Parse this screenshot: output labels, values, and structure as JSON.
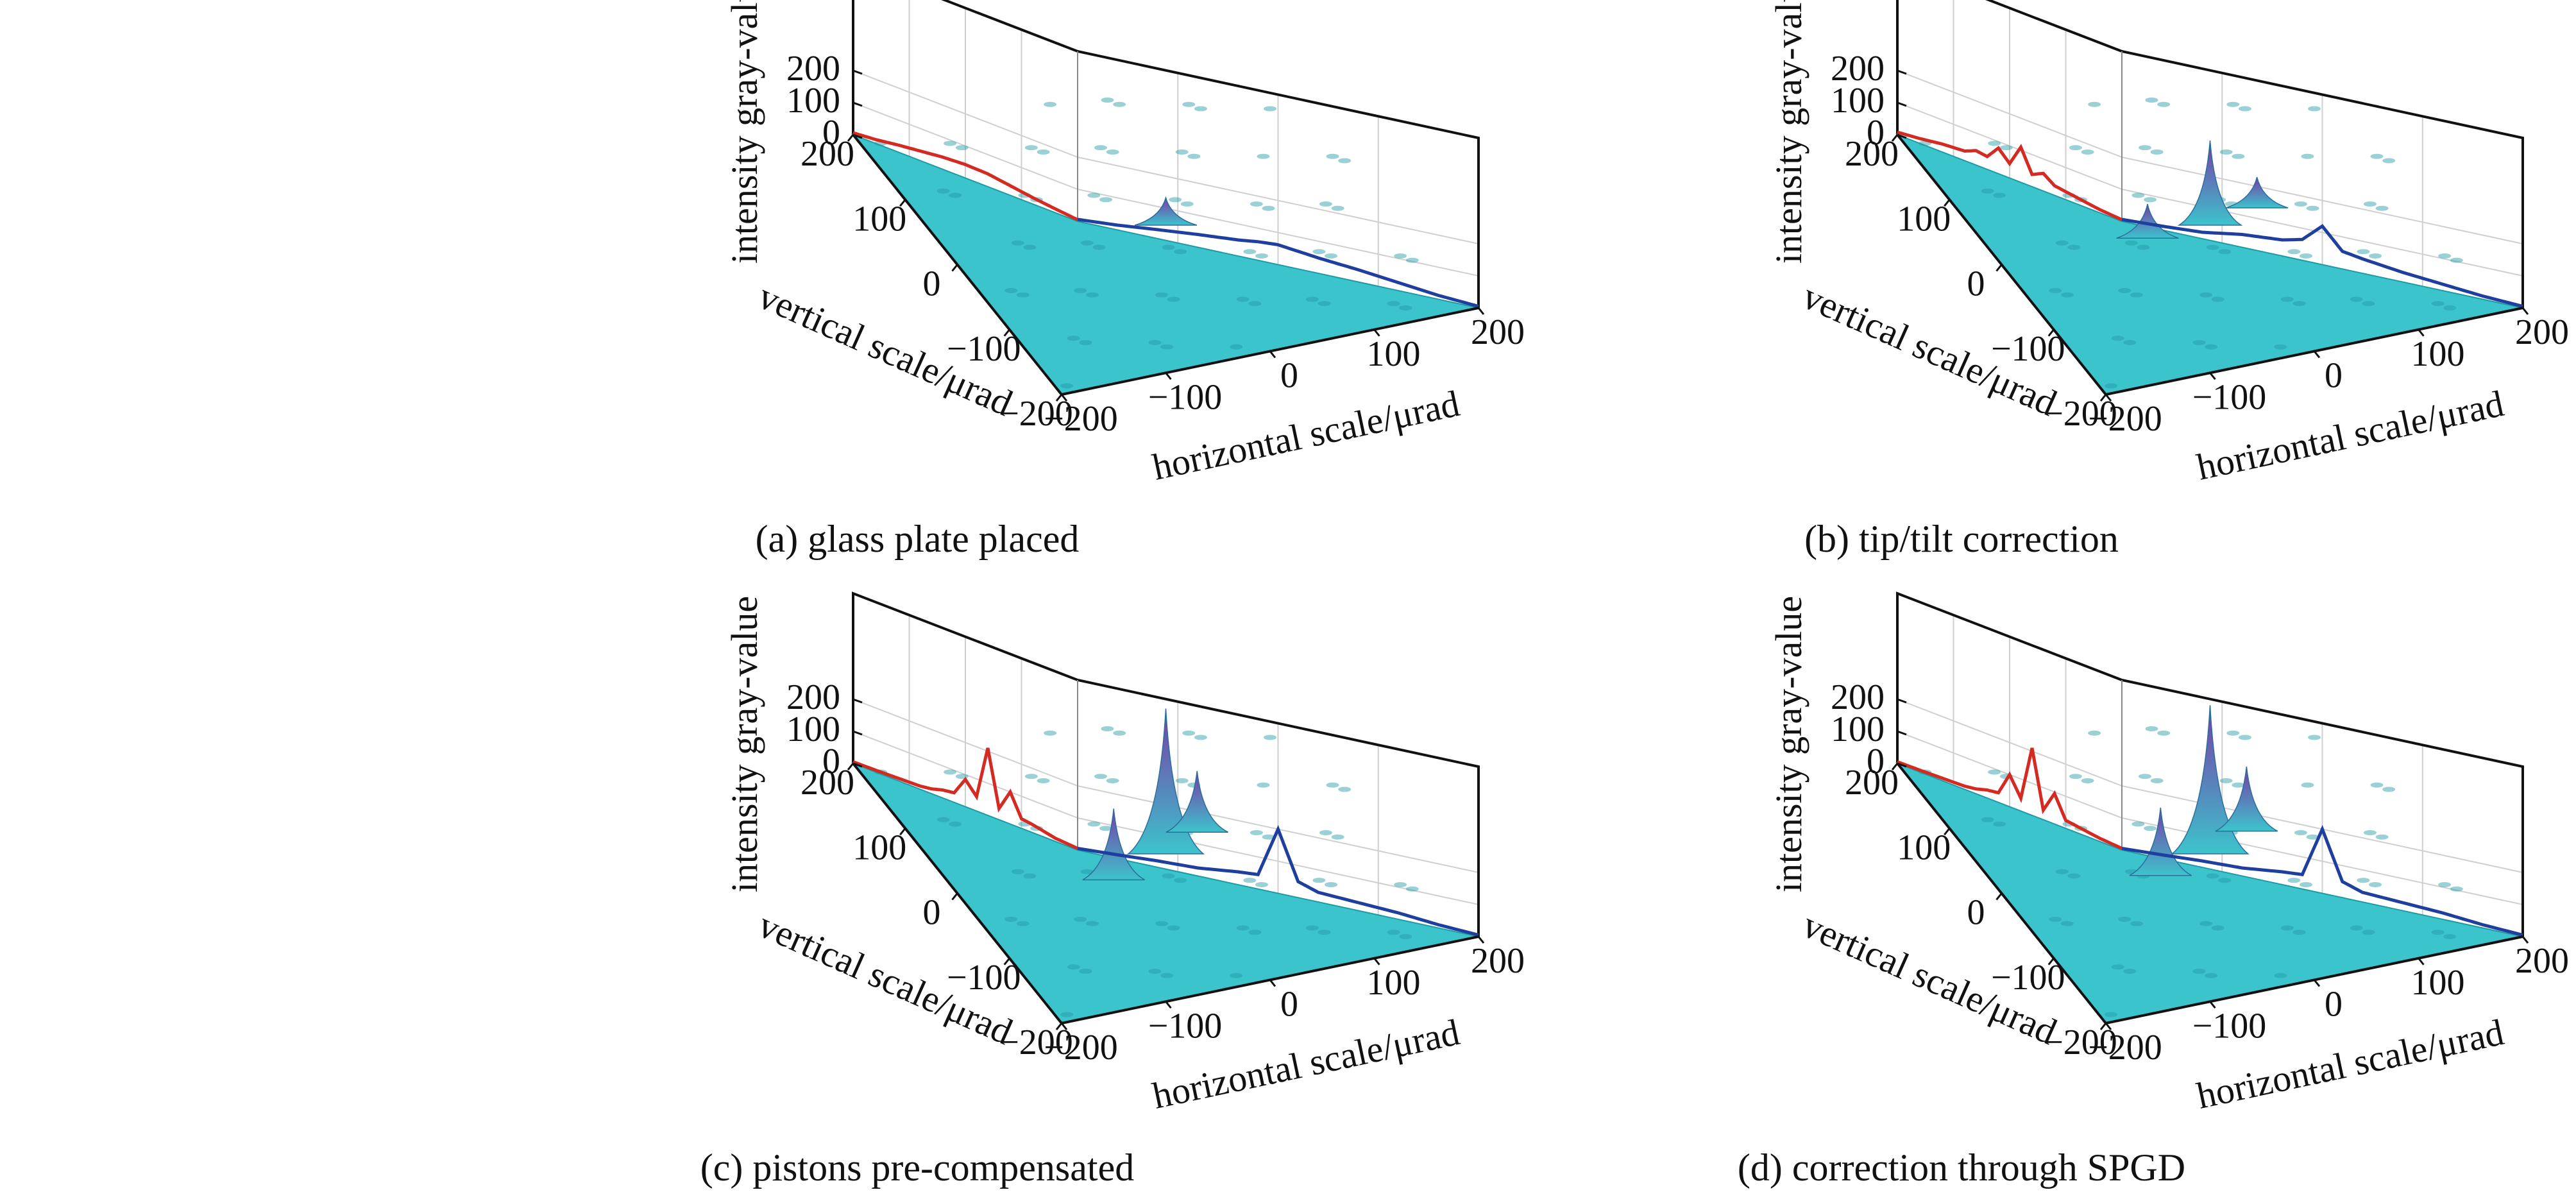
{
  "figure": {
    "panels": [
      {
        "caption": "(a) glass plate placed",
        "zlabel": "intensity gray-value",
        "ylabel": "vertical scale/μrad",
        "xlabel": "horizontal scale/μrad",
        "z_ticks": [
          "0",
          "100",
          "200"
        ],
        "y_ticks": [
          "200",
          "100",
          "0",
          "−100",
          "−200"
        ],
        "x_ticks": [
          "−200",
          "−100",
          "0",
          "100",
          "200"
        ]
      },
      {
        "caption": "(b) tip/tilt correction",
        "zlabel": "intensity gray-value",
        "ylabel": "vertical scale/μrad",
        "xlabel": "horizontal scale/μrad",
        "z_ticks": [
          "0",
          "100",
          "200"
        ],
        "y_ticks": [
          "200",
          "100",
          "0",
          "−100",
          "−200"
        ],
        "x_ticks": [
          "−200",
          "−100",
          "0",
          "100",
          "200"
        ]
      },
      {
        "caption": "(c)  pistons pre-compensated",
        "zlabel": "intensity gray-value",
        "ylabel": "vertical scale/μrad",
        "xlabel": "horizontal scale/μrad",
        "z_ticks": [
          "0",
          "100",
          "200"
        ],
        "y_ticks": [
          "200",
          "100",
          "0",
          "−100",
          "−200"
        ],
        "x_ticks": [
          "−200",
          "−100",
          "0",
          "100",
          "200"
        ]
      },
      {
        "caption": "(d) correction through SPGD",
        "zlabel": "intensity gray-value",
        "ylabel": "vertical scale/μrad",
        "xlabel": "horizontal scale/μrad",
        "z_ticks": [
          "0",
          "100",
          "200"
        ],
        "y_ticks": [
          "200",
          "100",
          "0",
          "−100",
          "−200"
        ],
        "x_ticks": [
          "−200",
          "−100",
          "0",
          "100",
          "200"
        ]
      }
    ]
  },
  "colors": {
    "surface": "#3cc4cc",
    "surface_dark": "#1f9aa4",
    "peak": "#7a3aa8",
    "profile_vertical": "#d42a22",
    "profile_horizontal": "#1e3f9e",
    "axes": "#111111",
    "grid": "#cfcfcf"
  },
  "chart_data": [
    {
      "type": "surface3d",
      "title": "(a) glass plate placed",
      "xlabel": "horizontal scale/μrad",
      "ylabel": "vertical scale/μrad",
      "zlabel": "intensity gray-value",
      "xlim": [
        -200,
        200
      ],
      "ylim": [
        -200,
        200
      ],
      "zlim": [
        0,
        250
      ],
      "profile_vertical": {
        "x": [
          -200,
          -160,
          -120,
          -80,
          -40,
          0,
          40,
          80,
          120,
          160,
          200
        ],
        "values": [
          5,
          12,
          20,
          30,
          40,
          42,
          38,
          30,
          22,
          12,
          6
        ]
      },
      "profile_horizontal": {
        "x": [
          -200,
          -160,
          -120,
          -80,
          -40,
          -20,
          0,
          20,
          40,
          80,
          120,
          160,
          200
        ],
        "values": [
          6,
          15,
          28,
          40,
          50,
          58,
          62,
          55,
          48,
          38,
          25,
          12,
          5
        ]
      },
      "surface_peaks": [
        {
          "x": 0,
          "y": 0,
          "z": 35
        }
      ]
    },
    {
      "type": "surface3d",
      "title": "(b) tip/tilt correction",
      "xlabel": "horizontal scale/μrad",
      "ylabel": "vertical scale/μrad",
      "zlabel": "intensity gray-value",
      "xlim": [
        -200,
        200
      ],
      "ylim": [
        -200,
        200
      ],
      "zlim": [
        0,
        250
      ],
      "profile_vertical": {
        "x": [
          -200,
          -160,
          -120,
          -80,
          -60,
          -40,
          -20,
          0,
          20,
          40,
          60,
          80,
          120,
          160,
          200
        ],
        "values": [
          5,
          10,
          20,
          30,
          55,
          38,
          110,
          45,
          80,
          40,
          45,
          30,
          25,
          15,
          8
        ]
      },
      "profile_horizontal": {
        "x": [
          -200,
          -160,
          -120,
          -80,
          -40,
          -20,
          0,
          20,
          40,
          80,
          120,
          160,
          200
        ],
        "values": [
          6,
          12,
          20,
          40,
          50,
          65,
          120,
          55,
          45,
          30,
          20,
          10,
          5
        ]
      },
      "surface_peaks": [
        {
          "x": 0,
          "y": 0,
          "z": 120
        },
        {
          "x": -60,
          "y": 0,
          "z": 45
        },
        {
          "x": 50,
          "y": 10,
          "z": 40
        }
      ]
    },
    {
      "type": "surface3d",
      "title": "(c)  pistons pre-compensated",
      "xlabel": "horizontal scale/μrad",
      "ylabel": "vertical scale/μrad",
      "zlabel": "intensity gray-value",
      "xlim": [
        -200,
        200
      ],
      "ylim": [
        -200,
        200
      ],
      "zlim": [
        0,
        250
      ],
      "profile_vertical": {
        "x": [
          -200,
          -160,
          -120,
          -100,
          -80,
          -60,
          -40,
          -20,
          0,
          20,
          40,
          60,
          80,
          120,
          160,
          200
        ],
        "values": [
          5,
          10,
          25,
          30,
          100,
          35,
          210,
          45,
          85,
          30,
          25,
          15,
          10,
          8,
          6,
          5
        ]
      },
      "profile_horizontal": {
        "x": [
          -200,
          -160,
          -120,
          -80,
          -40,
          -20,
          0,
          20,
          40,
          80,
          120,
          160,
          200
        ],
        "values": [
          5,
          12,
          20,
          25,
          40,
          45,
          200,
          50,
          30,
          25,
          20,
          10,
          5
        ]
      },
      "surface_peaks": [
        {
          "x": 0,
          "y": 0,
          "z": 210
        },
        {
          "x": -60,
          "y": -20,
          "z": 100
        },
        {
          "x": 40,
          "y": 20,
          "z": 85
        }
      ]
    },
    {
      "type": "surface3d",
      "title": "(d) correction through SPGD",
      "xlabel": "horizontal scale/μrad",
      "ylabel": "vertical scale/μrad",
      "zlabel": "intensity gray-value",
      "xlim": [
        -200,
        200
      ],
      "ylim": [
        -200,
        200
      ],
      "zlim": [
        0,
        250
      ],
      "profile_vertical": {
        "x": [
          -200,
          -160,
          -120,
          -100,
          -80,
          -60,
          -40,
          -20,
          0,
          20,
          40,
          60,
          80,
          120,
          160,
          200
        ],
        "values": [
          5,
          10,
          20,
          25,
          95,
          30,
          210,
          40,
          100,
          30,
          25,
          15,
          10,
          8,
          6,
          5
        ]
      },
      "profile_horizontal": {
        "x": [
          -200,
          -160,
          -120,
          -80,
          -40,
          -20,
          0,
          20,
          40,
          80,
          120,
          160,
          200
        ],
        "values": [
          5,
          12,
          20,
          25,
          40,
          45,
          200,
          50,
          30,
          25,
          20,
          10,
          5
        ]
      },
      "surface_peaks": [
        {
          "x": 0,
          "y": 0,
          "z": 215
        },
        {
          "x": -55,
          "y": -15,
          "z": 95
        },
        {
          "x": 45,
          "y": 20,
          "z": 90
        }
      ]
    }
  ]
}
